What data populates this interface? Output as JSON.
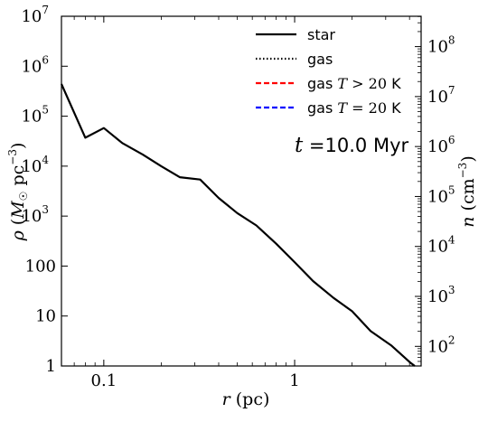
{
  "chart_data": {
    "type": "line",
    "xlabel": "r (pc)",
    "ylabel": "ρ (M☉ pc⁻³)",
    "ylabel_right": "n (cm⁻³)",
    "x_scale": "log",
    "y_scale": "log",
    "xlim": [
      0.06,
      4.6
    ],
    "ylim": [
      1,
      10000000
    ],
    "x_ticks": [
      {
        "value": 0.1,
        "label": "0.1"
      },
      {
        "value": 1,
        "label": "1"
      }
    ],
    "y_ticks": [
      {
        "value": 1,
        "label": "1"
      },
      {
        "value": 10,
        "label": "10"
      },
      {
        "value": 100,
        "label": "100"
      },
      {
        "value": 1000,
        "label": "10",
        "exp": "3"
      },
      {
        "value": 10000,
        "label": "10",
        "exp": "4"
      },
      {
        "value": 100000,
        "label": "10",
        "exp": "5"
      },
      {
        "value": 1000000,
        "label": "10",
        "exp": "6"
      },
      {
        "value": 10000000,
        "label": "10",
        "exp": "7"
      }
    ],
    "y_right_ticks": [
      {
        "value": 100,
        "label": "10",
        "exp": "2"
      },
      {
        "value": 1000,
        "label": "10",
        "exp": "3"
      },
      {
        "value": 10000,
        "label": "10",
        "exp": "4"
      },
      {
        "value": 100000,
        "label": "10",
        "exp": "5"
      },
      {
        "value": 1000000,
        "label": "10",
        "exp": "6"
      },
      {
        "value": 10000000,
        "label": "10",
        "exp": "7"
      },
      {
        "value": 100000000,
        "label": "10",
        "exp": "8"
      }
    ],
    "n_per_rho": 40.5,
    "legend_position": "top-right",
    "series": [
      {
        "name": "star",
        "color": "#000000",
        "dash": "solid",
        "x": [
          0.06,
          0.08,
          0.1,
          0.125,
          0.16,
          0.2,
          0.25,
          0.32,
          0.4,
          0.5,
          0.63,
          0.8,
          1.0,
          1.25,
          1.6,
          2.0,
          2.5,
          3.2,
          4.0,
          4.5
        ],
        "y": [
          440000,
          37000,
          58000,
          29000,
          17000,
          10000,
          6000,
          5400,
          2300,
          1150,
          650,
          280,
          120,
          50,
          23,
          12.5,
          5,
          2.6,
          1.2,
          0.85
        ]
      },
      {
        "name": "gas",
        "color": "#000000",
        "dash": "dotted",
        "x": [],
        "y": []
      },
      {
        "name": "gas T > 20 K",
        "color": "#ff0000",
        "dash": "dashed",
        "x": [],
        "y": []
      },
      {
        "name": "gas T = 20 K",
        "color": "#0000ff",
        "dash": "dashed",
        "x": [],
        "y": []
      }
    ],
    "legend": [
      {
        "label": "star",
        "color": "#000000",
        "dash": "solid"
      },
      {
        "label": "gas",
        "color": "#000000",
        "dash": "dotted"
      },
      {
        "label": "gas",
        "math": "T > 20",
        "unit": "K",
        "color": "#ff0000",
        "dash": "dashed"
      },
      {
        "label": "gas",
        "math": "T = 20",
        "unit": "K",
        "color": "#0000ff",
        "dash": "dashed"
      }
    ],
    "annotation": {
      "prefix": "t",
      "text": "=10.0 Myr"
    }
  }
}
